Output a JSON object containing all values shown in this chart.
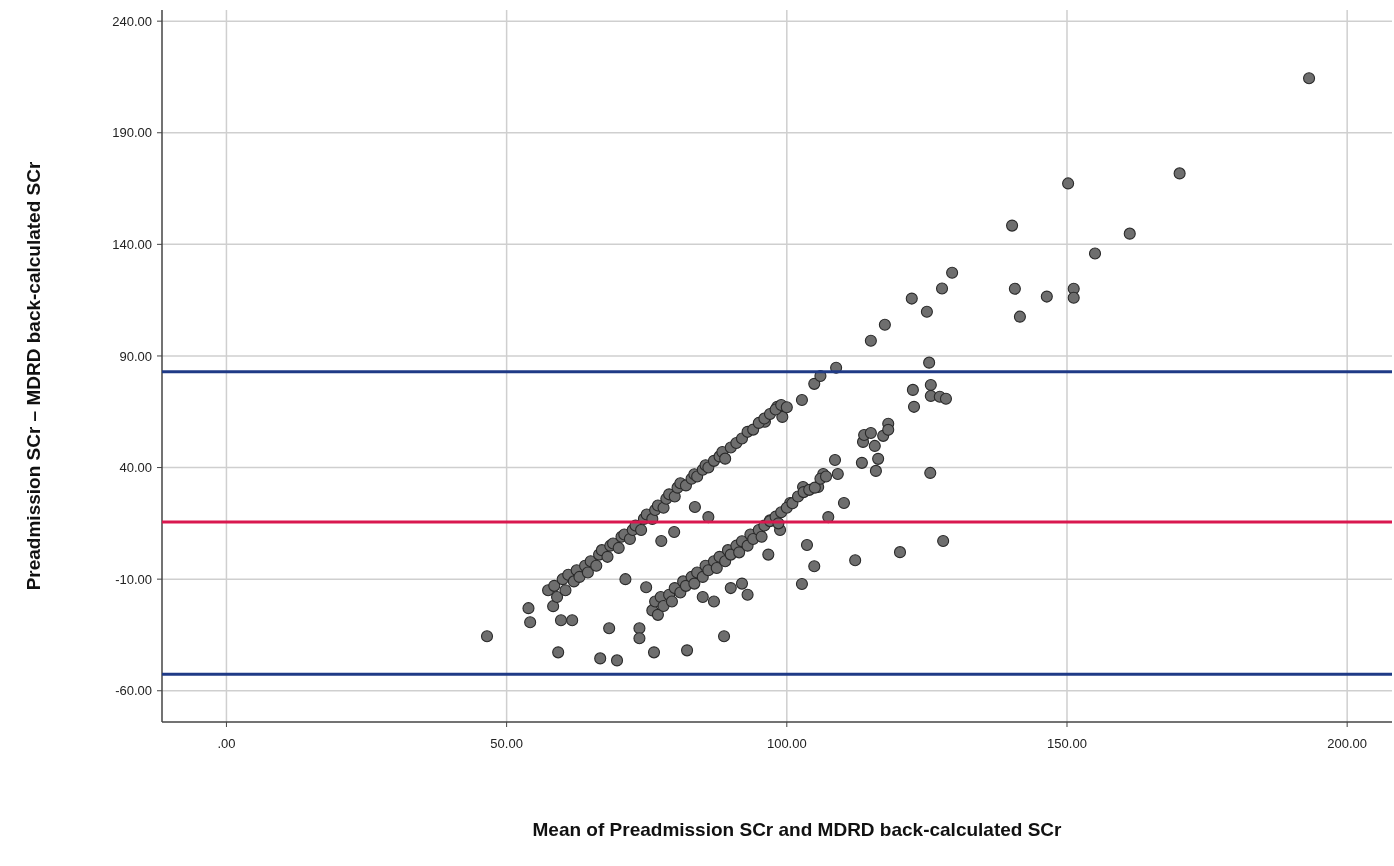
{
  "chart_data": {
    "type": "scatter",
    "xlabel": "Mean of Preadmission SCr and MDRD back-calculated SCr",
    "ylabel": "Preadmission SCr – MDRD back-calculated SCr",
    "xlim": [
      -11.5,
      208
    ],
    "ylim": [
      -74,
      245
    ],
    "xticks": [
      {
        "value": 0,
        "label": ".00"
      },
      {
        "value": 50,
        "label": "50.00"
      },
      {
        "value": 100,
        "label": "100.00"
      },
      {
        "value": 150,
        "label": "150.00"
      },
      {
        "value": 200,
        "label": "200.00"
      }
    ],
    "yticks": [
      {
        "value": -60,
        "label": "-60.00"
      },
      {
        "value": -10,
        "label": "-10.00"
      },
      {
        "value": 40,
        "label": "40.00"
      },
      {
        "value": 90,
        "label": "90.00"
      },
      {
        "value": 140,
        "label": "140.00"
      },
      {
        "value": 190,
        "label": "190.00"
      },
      {
        "value": 240,
        "label": "240.00"
      }
    ],
    "grid": true,
    "marker": "circle",
    "ref_lines": [
      {
        "axis": "y",
        "value": 82.9,
        "color": "#1f3a86"
      },
      {
        "axis": "y",
        "value": 15.6,
        "color": "#d9184f"
      },
      {
        "axis": "y",
        "value": -52.6,
        "color": "#1f3a86"
      }
    ],
    "series": [
      {
        "color": "#6e6e6e",
        "x": [
          46.5,
          53.9,
          54.2,
          57.4,
          58.3,
          59.2,
          59.7,
          61.7,
          68.3,
          66.7,
          69.7,
          73.7,
          73.7,
          76.3,
          82.2,
          88.8,
          71.2,
          74.9,
          83.6,
          86.0,
          79.9,
          77.6,
          96.7,
          102.7,
          104.9,
          106,
          108.8,
          115,
          117.5,
          125.4,
          122.5,
          122.7,
          125.7,
          125.7,
          127.3,
          128.4,
          125.6,
          127.9,
          120.2,
          112.2,
          104.9,
          103.6,
          102.7,
          110.2,
          107.4,
          108.6,
          109.1,
          106.5,
          113.4,
          115.9,
          116.3,
          115.7,
          113.6,
          113.8,
          115,
          117.2,
          118.1,
          118.1,
          97,
          100.6,
          102.9,
          105.6,
          98.8,
          98.3,
          99.2,
          96.1,
          140.2,
          140.7,
          141.6,
          146.4,
          150.2,
          151.2,
          151.2,
          155,
          161.2,
          170.1,
          193.2,
          122.3,
          125,
          127.7,
          129.5,
          58.5,
          59,
          60,
          60.5,
          61,
          62,
          62.5,
          63,
          64,
          64.5,
          65,
          66,
          66.5,
          67,
          68,
          68.5,
          69,
          70,
          70.5,
          71,
          72,
          72.5,
          73,
          74,
          74.5,
          75,
          76,
          76.5,
          77,
          78,
          78.5,
          79,
          80,
          80.5,
          81,
          82,
          83,
          83.5,
          84,
          85,
          85.5,
          86,
          87,
          88,
          88.5,
          89,
          90,
          91,
          92,
          93,
          94,
          95,
          96,
          97,
          98,
          99,
          100,
          76,
          76.5,
          77,
          77.5,
          78,
          79,
          79.5,
          80,
          81,
          81.5,
          82,
          83,
          83.5,
          84,
          85,
          85.5,
          86,
          87,
          87.5,
          88,
          89,
          89.5,
          90,
          91,
          91.5,
          92,
          93,
          93.5,
          94,
          95,
          95.5,
          96,
          97,
          98,
          98.5,
          99,
          100,
          101,
          102,
          103,
          104,
          105,
          106,
          107,
          85,
          87,
          90,
          92,
          93
        ],
        "values": [
          -35.6,
          -23.0,
          -29.3,
          -15.0,
          -22.1,
          -42.8,
          -28.4,
          -28.4,
          -32.0,
          -45.5,
          -46.4,
          -32.0,
          -36.5,
          -42.8,
          -41.9,
          -35.6,
          -10.0,
          -13.6,
          22.3,
          17.8,
          11.1,
          7.1,
          1.0,
          70.3,
          77.5,
          81,
          84.7,
          96.8,
          104,
          87,
          74.8,
          67.2,
          77,
          72.1,
          71.7,
          70.8,
          37.6,
          7.1,
          2.1,
          -1.5,
          -4.2,
          5.3,
          -12.2,
          24.1,
          17.8,
          43.4,
          37.1,
          37.1,
          42.1,
          38.5,
          43.9,
          49.7,
          51.5,
          54.6,
          55.5,
          54.2,
          59.6,
          56.9,
          16.4,
          24.1,
          31.3,
          31.3,
          12,
          67.2,
          62.7,
          60.5,
          148.4,
          120.1,
          107.6,
          116.6,
          167.3,
          120.1,
          116.1,
          135.9,
          144.8,
          171.8,
          214.4,
          115.7,
          109.8,
          120.2,
          127.3,
          -13,
          -18,
          -10,
          -15,
          -8,
          -11,
          -6,
          -9,
          -4,
          -7,
          -2,
          -4,
          1,
          3,
          0,
          5,
          6,
          4,
          9,
          10,
          8,
          12,
          14,
          12,
          17,
          19,
          17,
          21,
          23,
          22,
          26,
          28,
          27,
          31,
          33,
          32,
          35,
          37,
          36,
          39,
          41,
          40,
          43,
          45,
          47,
          44,
          49,
          51,
          53,
          56,
          57,
          60,
          62,
          64,
          66,
          68,
          67,
          -24,
          -20,
          -26,
          -18,
          -22,
          -17,
          -20,
          -14,
          -16,
          -11,
          -13,
          -9,
          -12,
          -7,
          -9,
          -4,
          -6,
          -2,
          -5,
          0,
          -2,
          3,
          1,
          5,
          2,
          7,
          5,
          10,
          8,
          12,
          9,
          14,
          16,
          18,
          15,
          20,
          22,
          24,
          27,
          29,
          30,
          31,
          35,
          36,
          -18,
          -20,
          -14,
          -12,
          -17
        ]
      }
    ]
  }
}
